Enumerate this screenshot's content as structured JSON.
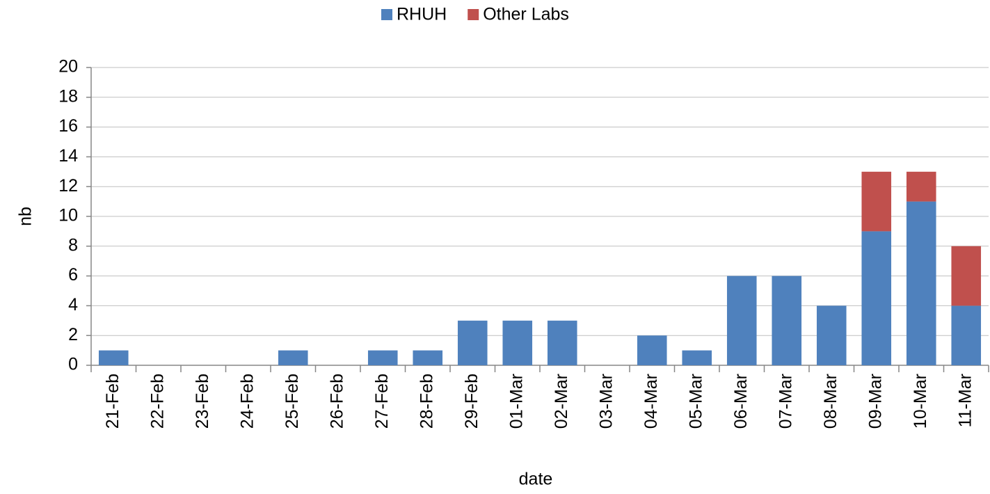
{
  "chart_data": {
    "type": "stacked_bar",
    "categories": [
      "21-Feb",
      "22-Feb",
      "23-Feb",
      "24-Feb",
      "25-Feb",
      "26-Feb",
      "27-Feb",
      "28-Feb",
      "29-Feb",
      "01-Mar",
      "02-Mar",
      "03-Mar",
      "04-Mar",
      "05-Mar",
      "06-Mar",
      "07-Mar",
      "08-Mar",
      "09-Mar",
      "10-Mar",
      "11-Mar"
    ],
    "series": [
      {
        "name": "RHUH",
        "color": "#4f81bd",
        "values": [
          1,
          0,
          0,
          0,
          1,
          0,
          1,
          1,
          3,
          3,
          3,
          0,
          2,
          1,
          6,
          6,
          4,
          9,
          11,
          4
        ]
      },
      {
        "name": "Other Labs",
        "color": "#c0504d",
        "values": [
          0,
          0,
          0,
          0,
          0,
          0,
          0,
          0,
          0,
          0,
          0,
          0,
          0,
          0,
          0,
          0,
          0,
          4,
          2,
          4
        ]
      }
    ],
    "x_label": "date",
    "y_label": "nb",
    "ylim": [
      0,
      20
    ],
    "yticks": [
      0,
      2,
      4,
      6,
      8,
      10,
      12,
      14,
      16,
      18,
      20
    ],
    "grid": true,
    "legend": "top"
  }
}
